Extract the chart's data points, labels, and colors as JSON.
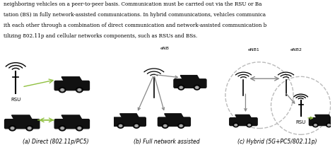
{
  "bg_color": "#ffffff",
  "text_color": "#000000",
  "car_color": "#111111",
  "arrow_color_green": "#90c040",
  "arrow_color_gray": "#888888",
  "arrow_color_black": "#222222",
  "circle_color": "#bbbbbb",
  "panel_a_label": "(a) Direct (802.11p/PC5)",
  "panel_b_label": "(b) Full network assisted",
  "panel_c_label": "(c) Hybrid (5G+PC5/802.11p)",
  "rsu_label": "RSU",
  "enb_label": "eNB",
  "enb1_label": "eNB1",
  "enb2_label": "eNB2",
  "rsu2_label": "RSU",
  "text_top1": "neighboring vehicles on a peer-to-peer basis. Communication must be carried out via the RSU or Ba",
  "text_top2": "tation (BS) in fully network-assisted communications. In hybrid communications, vehicles communica",
  "text_top3": "ith each other through a combination of direct communication and network-assisted communication b",
  "text_top4": "tilizing 802.11p and cellular networks components, such as RSUs and BSs."
}
